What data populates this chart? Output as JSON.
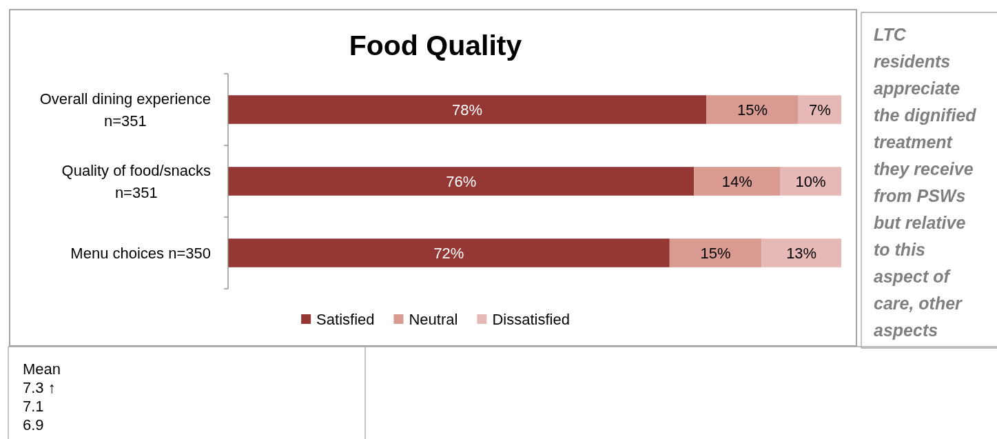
{
  "chart_data": {
    "type": "bar",
    "orientation": "horizontal",
    "stacked": true,
    "title": "Food Quality",
    "categories": [
      "Overall dining experience n=351",
      "Quality of food/snacks n=351",
      "Menu choices n=350"
    ],
    "series": [
      {
        "name": "Satisfied",
        "color": "#953735",
        "values": [
          78,
          76,
          72
        ],
        "value_labels": [
          "78%",
          "76%",
          "72%"
        ]
      },
      {
        "name": "Neutral",
        "color": "#d99b91",
        "values": [
          15,
          14,
          15
        ],
        "value_labels": [
          "15%",
          "14%",
          "15%"
        ]
      },
      {
        "name": "Dissatisfied",
        "color": "#e6b9b8",
        "values": [
          7,
          10,
          13
        ],
        "value_labels": [
          "7%",
          "10%",
          "13%"
        ]
      }
    ],
    "xlim": [
      0,
      100
    ],
    "tick_labels": "y",
    "legend": "bottom",
    "annotations": [
      "LTC residents appreciate the dignified treatment they receive from PSWs but relative to this aspect of care, other aspects",
      "Mean",
      "7.3 ↑",
      "7.1",
      "6.9"
    ]
  }
}
